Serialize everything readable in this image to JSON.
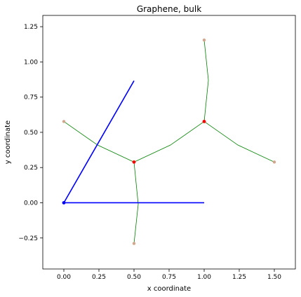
{
  "chart_data": {
    "type": "scatter",
    "title": "Graphene, bulk",
    "xlabel": "x coordinate",
    "ylabel": "y coordinate",
    "xlim": [
      -0.15,
      1.65
    ],
    "ylim": [
      -0.47,
      1.33
    ],
    "xticks": [
      0.0,
      0.25,
      0.5,
      0.75,
      1.0,
      1.25,
      1.5
    ],
    "xtick_labels": [
      "0.00",
      "0.25",
      "0.50",
      "0.75",
      "1.00",
      "1.25",
      "1.50"
    ],
    "yticks": [
      -0.25,
      0.0,
      0.25,
      0.5,
      0.75,
      1.0,
      1.25
    ],
    "ytick_labels": [
      "−0.25",
      "0.00",
      "0.25",
      "0.50",
      "0.75",
      "1.00",
      "1.25"
    ],
    "grid": false,
    "colors": {
      "lattice_vectors": "#0000ff",
      "bonds": "#008000",
      "atoms": "#ff0000",
      "neighbor_atoms": "#d2a58c",
      "origin": "#0000ff"
    },
    "lattice_vectors": [
      {
        "from": [
          0.0,
          0.0
        ],
        "to": [
          1.0,
          0.0
        ]
      },
      {
        "from": [
          0.0,
          0.0
        ],
        "to": [
          0.5,
          0.866
        ]
      }
    ],
    "bonds": [
      {
        "points": [
          [
            0.5,
            0.289
          ],
          [
            0.24,
            0.41
          ],
          [
            0.0,
            0.577
          ]
        ]
      },
      {
        "points": [
          [
            0.5,
            0.289
          ],
          [
            0.76,
            0.41
          ],
          [
            1.0,
            0.577
          ]
        ]
      },
      {
        "points": [
          [
            0.5,
            0.289
          ],
          [
            0.53,
            -0.01
          ],
          [
            0.5,
            -0.289
          ]
        ]
      },
      {
        "points": [
          [
            1.0,
            0.577
          ],
          [
            1.03,
            0.87
          ],
          [
            1.0,
            1.155
          ]
        ]
      },
      {
        "points": [
          [
            1.0,
            0.577
          ],
          [
            1.24,
            0.41
          ],
          [
            1.5,
            0.289
          ]
        ]
      }
    ],
    "atoms": [
      {
        "x": 0.5,
        "y": 0.289
      },
      {
        "x": 1.0,
        "y": 0.577
      }
    ],
    "neighbor_atoms": [
      {
        "x": 0.0,
        "y": 0.577
      },
      {
        "x": 0.5,
        "y": -0.289
      },
      {
        "x": 1.0,
        "y": 1.155
      },
      {
        "x": 1.5,
        "y": 0.289
      }
    ],
    "origin": {
      "x": 0.0,
      "y": 0.0
    }
  }
}
